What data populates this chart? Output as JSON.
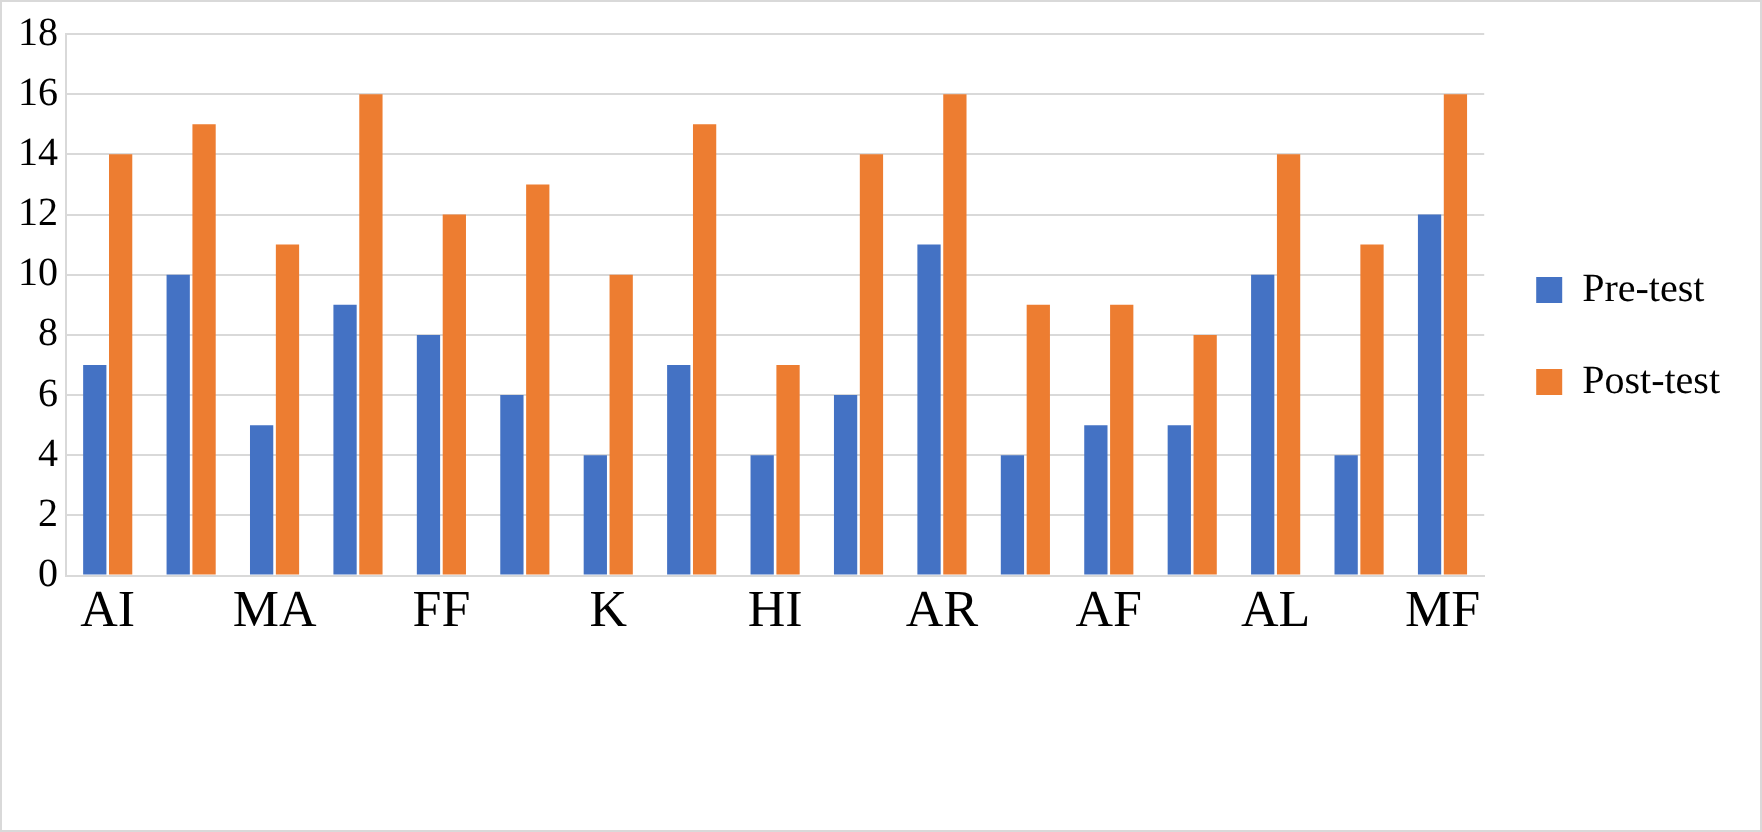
{
  "chart_data": {
    "type": "bar",
    "categories": [
      "AI",
      null,
      "MA",
      null,
      "FF",
      null,
      "K",
      null,
      "HI",
      null,
      "AR",
      null,
      "AF",
      null,
      "AL",
      null,
      "MF"
    ],
    "series": [
      {
        "name": "Pre-test",
        "color": "#4472c4",
        "values": [
          7,
          10,
          5,
          9,
          8,
          6,
          4,
          7,
          4,
          6,
          11,
          4,
          5,
          5,
          10,
          4,
          12
        ]
      },
      {
        "name": "Post-test",
        "color": "#ed7d31",
        "values": [
          14,
          15,
          11,
          16,
          12,
          13,
          10,
          15,
          7,
          14,
          16,
          9,
          9,
          8,
          14,
          11,
          16
        ]
      }
    ],
    "ylim": [
      0,
      18
    ],
    "yticks": [
      0,
      2,
      4,
      6,
      8,
      10,
      12,
      14,
      16,
      18
    ],
    "grid": "y",
    "legend": "right"
  }
}
